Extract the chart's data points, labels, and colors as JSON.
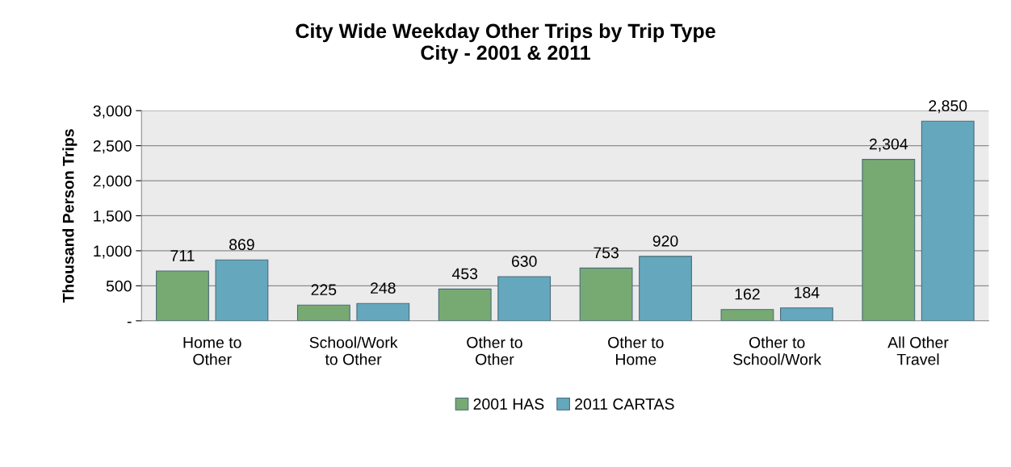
{
  "chart_data": {
    "type": "bar",
    "title": "City Wide Weekday Other Trips by Trip Type\nCity - 2001 & 2011",
    "ylabel": "Thousand Person Trips",
    "categories": [
      "Home to\nOther",
      "School/Work\nto Other",
      "Other to\nOther",
      "Other to\nHome",
      "Other to\nSchool/Work",
      "All Other\nTravel"
    ],
    "series": [
      {
        "name": "2001 HAS",
        "color": "#77aa72",
        "values": [
          711,
          225,
          453,
          753,
          162,
          2304
        ],
        "value_labels": [
          "711",
          "225",
          "453",
          "753",
          "162",
          "2,304"
        ]
      },
      {
        "name": "2011 CARTAS",
        "color": "#65a8bd",
        "values": [
          869,
          248,
          630,
          920,
          184,
          2850
        ],
        "value_labels": [
          "869",
          "248",
          "630",
          "920",
          "184",
          "2,850"
        ]
      }
    ],
    "ylim": [
      0,
      3000
    ],
    "yticks": [
      {
        "value": 0,
        "label": "-"
      },
      {
        "value": 500,
        "label": "500"
      },
      {
        "value": 1000,
        "label": "1,000"
      },
      {
        "value": 1500,
        "label": "1,500"
      },
      {
        "value": 2000,
        "label": "2,000"
      },
      {
        "value": 2500,
        "label": "2,500"
      },
      {
        "value": 3000,
        "label": "3,000"
      }
    ],
    "grid": "y",
    "legend": "bottom"
  }
}
